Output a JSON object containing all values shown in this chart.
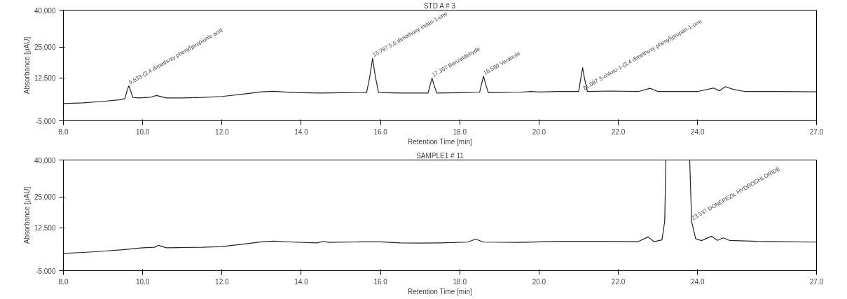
{
  "chart_data": [
    {
      "type": "line",
      "title": "STD A # 3",
      "xlabel": "Retention Time [min]",
      "ylabel": "Absorbance [µAU]",
      "xlim": [
        8,
        27
      ],
      "ylim": [
        -5000,
        40000
      ],
      "xticks": [
        {
          "value": 8,
          "label": "8.0"
        },
        {
          "value": 10,
          "label": "10.0"
        },
        {
          "value": 12,
          "label": "12.0"
        },
        {
          "value": 14,
          "label": "14.0"
        },
        {
          "value": 16,
          "label": "16.0"
        },
        {
          "value": 18,
          "label": "18.0"
        },
        {
          "value": 20,
          "label": "20.0"
        },
        {
          "value": 22,
          "label": "22.0"
        },
        {
          "value": 24,
          "label": "24.0"
        },
        {
          "value": 27,
          "label": "27.0"
        }
      ],
      "yticks": [
        {
          "value": -5000,
          "label": "-5,000"
        },
        {
          "value": 12500,
          "label": "12,500"
        },
        {
          "value": 25000,
          "label": "25,000"
        },
        {
          "value": 40000,
          "label": "40,000"
        }
      ],
      "x": [
        8.0,
        8.5,
        9.0,
        9.4,
        9.55,
        9.6,
        9.65,
        9.7,
        9.75,
        9.9,
        10.2,
        10.35,
        10.6,
        11.0,
        11.5,
        12.0,
        12.5,
        13.0,
        13.3,
        13.8,
        14.5,
        15.0,
        15.65,
        15.73,
        15.8,
        15.87,
        15.95,
        16.5,
        17.2,
        17.25,
        17.3,
        17.35,
        17.42,
        18.0,
        18.5,
        18.55,
        18.6,
        18.65,
        18.72,
        19.5,
        19.8,
        20.0,
        20.5,
        21.0,
        21.05,
        21.1,
        21.15,
        21.22,
        21.8,
        22.5,
        22.8,
        23.0,
        24.0,
        24.4,
        24.55,
        24.7,
        24.9,
        25.2,
        26.0,
        27.0
      ],
      "series": [
        {
          "color": "#222222",
          "values": [
            2000,
            2300,
            2900,
            3500,
            4000,
            7000,
            9200,
            7000,
            4500,
            4300,
            4600,
            5300,
            4300,
            4300,
            4500,
            4900,
            5800,
            6800,
            7000,
            6500,
            6300,
            6400,
            6500,
            13000,
            20400,
            13000,
            6500,
            6300,
            6300,
            9500,
            12300,
            9500,
            6300,
            6400,
            6600,
            10000,
            13100,
            10000,
            6400,
            6600,
            6900,
            6700,
            6900,
            6900,
            12000,
            16600,
            12000,
            6900,
            7100,
            6900,
            8200,
            6900,
            6900,
            8300,
            7200,
            8900,
            7800,
            6900,
            6900,
            6800
          ]
        }
      ],
      "annotations": [
        {
          "text": "9.633-(3,4 dimethoxy phenyl)propionic acid",
          "x": 9.65,
          "y": 9200
        },
        {
          "text": "15.787 5,6 dimethoxy indan-1-one",
          "x": 15.8,
          "y": 20400
        },
        {
          "text": "17.307 Benzaldehyde",
          "x": 17.3,
          "y": 12300
        },
        {
          "text": "18.580 Veratrole",
          "x": 18.6,
          "y": 13100
        },
        {
          "text": "21.087 3-chloro-1-(3,4 dimethoxy phenyl)propan-1-one",
          "x": 21.1,
          "y": 6900
        }
      ]
    },
    {
      "type": "line",
      "title": "SAMPLE1 # 11",
      "xlabel": "Retention Time [min]",
      "ylabel": "Absorbance [µAU]",
      "xlim": [
        8,
        27
      ],
      "ylim": [
        -5000,
        40000
      ],
      "xticks": [
        {
          "value": 8,
          "label": "8.0"
        },
        {
          "value": 10,
          "label": "10.0"
        },
        {
          "value": 12,
          "label": "12.0"
        },
        {
          "value": 14,
          "label": "14.0"
        },
        {
          "value": 16,
          "label": "16.0"
        },
        {
          "value": 18,
          "label": "18.0"
        },
        {
          "value": 20,
          "label": "20.0"
        },
        {
          "value": 22,
          "label": "22.0"
        },
        {
          "value": 24,
          "label": "24.0"
        },
        {
          "value": 27,
          "label": "27.0"
        }
      ],
      "yticks": [
        {
          "value": -5000,
          "label": "-5,000"
        },
        {
          "value": 12500,
          "label": "12,500"
        },
        {
          "value": 25000,
          "label": "25,000"
        },
        {
          "value": 40000,
          "label": "40,000"
        }
      ],
      "x": [
        8.0,
        8.5,
        9.0,
        9.5,
        10.0,
        10.3,
        10.4,
        10.6,
        11.0,
        11.5,
        12.0,
        12.5,
        13.0,
        13.3,
        13.8,
        14.4,
        14.55,
        14.7,
        15.5,
        16.0,
        16.5,
        17.0,
        17.5,
        18.2,
        18.4,
        18.6,
        19.5,
        20.5,
        21.5,
        22.5,
        22.75,
        22.9,
        23.1,
        23.17,
        23.2,
        23.5,
        23.8,
        23.85,
        23.95,
        24.1,
        24.35,
        24.5,
        24.65,
        24.8,
        25.5,
        26.0,
        27.0
      ],
      "series": [
        {
          "color": "#222222",
          "values": [
            2000,
            2400,
            2900,
            3500,
            4300,
            4500,
            5300,
            4300,
            4400,
            4500,
            4800,
            5700,
            6700,
            7000,
            6600,
            6300,
            6900,
            6500,
            6700,
            6700,
            6300,
            6200,
            6300,
            6600,
            7800,
            6600,
            6500,
            6900,
            6900,
            6800,
            8700,
            6800,
            7500,
            15000,
            40000,
            null,
            40000,
            15000,
            8000,
            7200,
            9000,
            7300,
            8300,
            7300,
            6900,
            6800,
            6600
          ]
        }
      ],
      "annotations": [
        {
          "text": "23.537 DONEPEZIL HYDROCHLORIDE",
          "x": 23.85,
          "y": 15000
        }
      ]
    }
  ]
}
